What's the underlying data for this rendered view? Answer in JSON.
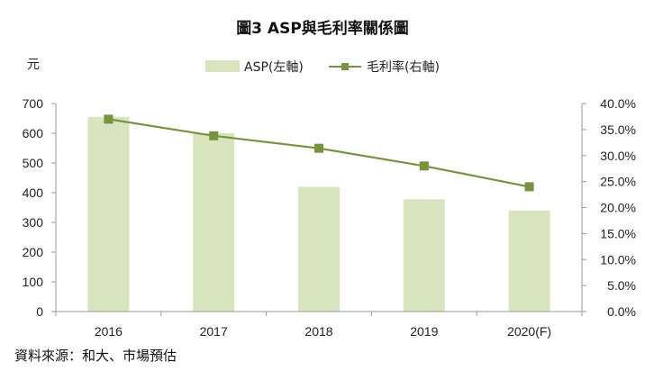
{
  "chart_data": {
    "type": "bar",
    "title": "圖3 ASP與毛利率關係圖",
    "left_unit_label": "元",
    "categories": [
      "2016",
      "2017",
      "2018",
      "2019",
      "2020(F)"
    ],
    "series": [
      {
        "name": "ASP(左軸)",
        "type": "bar",
        "axis": "left",
        "color": "#d7e4bd",
        "values": [
          655,
          600,
          420,
          378,
          340
        ]
      },
      {
        "name": "毛利率(右軸)",
        "type": "line",
        "axis": "right",
        "color": "#77933c",
        "marker": "square",
        "values": [
          37.0,
          33.8,
          31.4,
          28.0,
          24.0
        ]
      }
    ],
    "y_left": {
      "min": 0,
      "max": 700,
      "step": 100,
      "ticks": [
        "0",
        "100",
        "200",
        "300",
        "400",
        "500",
        "600",
        "700"
      ]
    },
    "y_right": {
      "min": 0,
      "max": 40,
      "step": 5,
      "ticks": [
        "0.0%",
        "5.0%",
        "10.0%",
        "15.0%",
        "20.0%",
        "25.0%",
        "30.0%",
        "35.0%",
        "40.0%"
      ]
    },
    "grid": false,
    "legend_position": "top"
  },
  "source_note": "資料來源：和大、市場預估"
}
